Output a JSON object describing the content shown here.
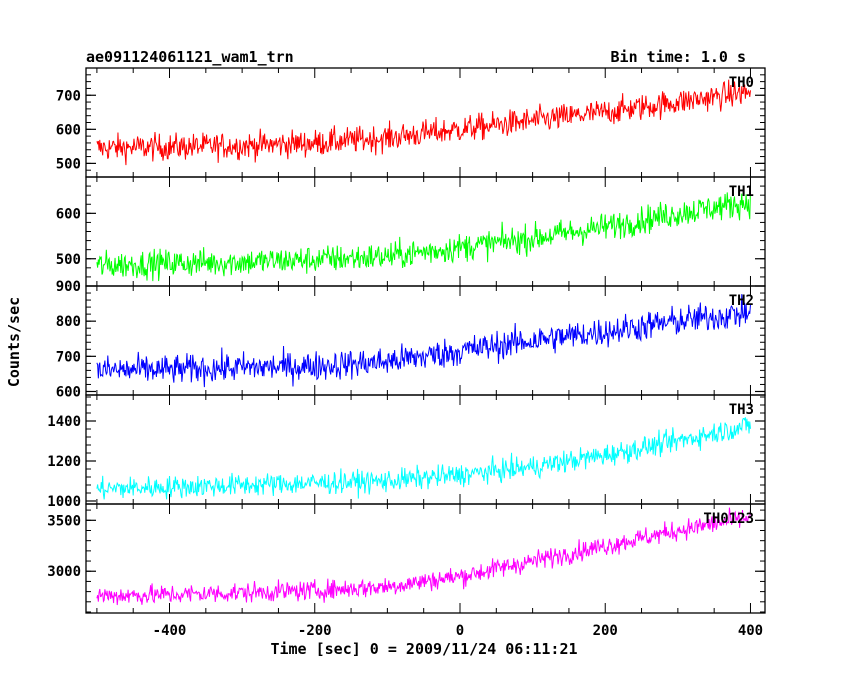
{
  "chart_data": {
    "type": "line",
    "title": "ae091124061121_wam1_trn",
    "subtitle": "Bin time: 1.0 s",
    "xlabel": "Time [sec] 0 = 2009/11/24 06:11:21",
    "ylabel": "Counts/sec",
    "xlim": [
      -515,
      420
    ],
    "x_ticks": [
      -400,
      -200,
      0,
      200,
      400
    ],
    "x_data_range": [
      -500,
      400
    ],
    "grid": false,
    "legend": "none",
    "panels": [
      {
        "name": "TH0",
        "color": "#ff0000",
        "ylim": [
          460,
          780
        ],
        "y_ticks": [
          500,
          600,
          700
        ],
        "x": [
          -500,
          -400,
          -300,
          -200,
          -100,
          0,
          100,
          200,
          300,
          400
        ],
        "values": [
          545,
          548,
          552,
          560,
          575,
          600,
          625,
          650,
          680,
          710
        ],
        "noise": 28
      },
      {
        "name": "TH1",
        "color": "#00ff00",
        "ylim": [
          440,
          680
        ],
        "y_ticks": [
          500,
          600
        ],
        "x": [
          -500,
          -400,
          -300,
          -200,
          -100,
          0,
          100,
          200,
          300,
          400
        ],
        "values": [
          485,
          490,
          493,
          498,
          505,
          525,
          545,
          570,
          600,
          625
        ],
        "noise": 22
      },
      {
        "name": "TH2",
        "color": "#0000ff",
        "ylim": [
          590,
          900
        ],
        "y_ticks": [
          600,
          700,
          800,
          900
        ],
        "x": [
          -500,
          -400,
          -300,
          -200,
          -100,
          0,
          100,
          200,
          300,
          400
        ],
        "values": [
          660,
          662,
          668,
          672,
          685,
          715,
          745,
          770,
          800,
          825
        ],
        "noise": 30
      },
      {
        "name": "TH3",
        "color": "#00ffff",
        "ylim": [
          985,
          1530
        ],
        "y_ticks": [
          1000,
          1200,
          1400
        ],
        "x": [
          -500,
          -400,
          -300,
          -200,
          -100,
          0,
          100,
          200,
          300,
          400
        ],
        "values": [
          1060,
          1070,
          1080,
          1090,
          1100,
          1130,
          1170,
          1230,
          1300,
          1380
        ],
        "noise": 40
      },
      {
        "name": "TH0123",
        "color": "#ff00ff",
        "ylim": [
          2590,
          3660
        ],
        "y_ticks": [
          3000,
          3500
        ],
        "x": [
          -500,
          -400,
          -300,
          -200,
          -100,
          0,
          100,
          200,
          300,
          400
        ],
        "values": [
          2760,
          2770,
          2790,
          2810,
          2850,
          2950,
          3100,
          3250,
          3400,
          3530
        ],
        "noise": 70
      }
    ]
  }
}
